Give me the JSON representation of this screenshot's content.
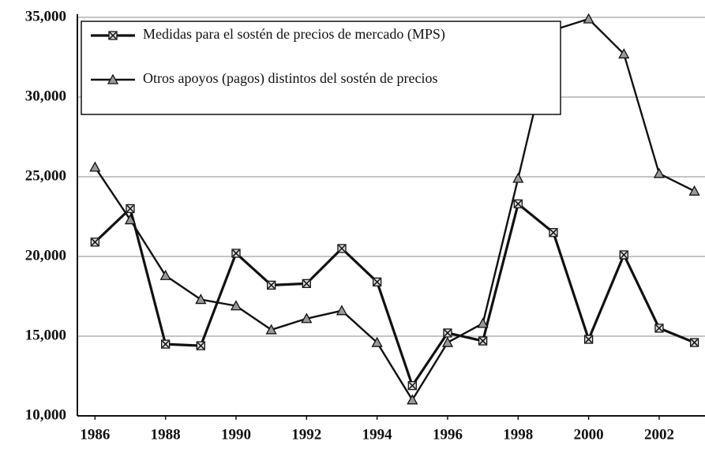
{
  "chart_data": {
    "type": "line",
    "x": [
      1986,
      1987,
      1988,
      1989,
      1990,
      1991,
      1992,
      1993,
      1994,
      1995,
      1996,
      1997,
      1998,
      1999,
      2000,
      2001,
      2002,
      2003
    ],
    "series": [
      {
        "name": "Medidas para el sostén de precios de mercado (MPS)",
        "color": "#111111",
        "marker": "x-square",
        "values": [
          20900,
          23000,
          14500,
          14400,
          20200,
          18200,
          18300,
          20500,
          18400,
          11900,
          15200,
          14700,
          23300,
          21500,
          14800,
          20100,
          15500,
          14600
        ]
      },
      {
        "name": "Otros apoyos (pagos) distintos del sostén de precios",
        "color": "#111111",
        "marker": "triangle",
        "values": [
          25600,
          22300,
          18800,
          17300,
          16900,
          15400,
          16100,
          16600,
          14600,
          11000,
          14600,
          15800,
          24900,
          34200,
          34900,
          32700,
          25200,
          24100
        ]
      }
    ],
    "xlim": [
      1985.5,
      2003.3
    ],
    "xticks": [
      1986,
      1988,
      1990,
      1992,
      1994,
      1996,
      1998,
      2000,
      2002
    ],
    "ylim": [
      10000,
      35000
    ],
    "yticks": [
      {
        "value": 10000,
        "label": "10,000"
      },
      {
        "value": 15000,
        "label": "15,000"
      },
      {
        "value": 20000,
        "label": "20,000"
      },
      {
        "value": 25000,
        "label": "25,000"
      },
      {
        "value": 30000,
        "label": "30,000"
      },
      {
        "value": 35000,
        "label": "35,000"
      }
    ],
    "grid": true,
    "legend": "upper-left"
  }
}
